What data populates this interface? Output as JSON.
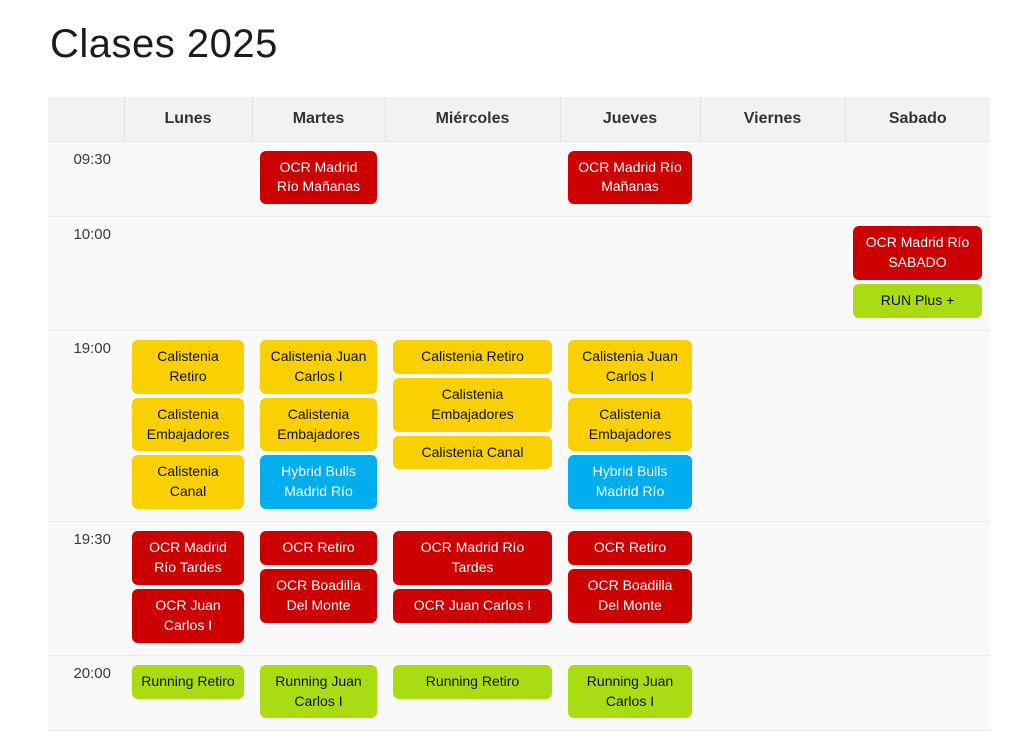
{
  "page": {
    "title": "Clases 2025"
  },
  "colors": {
    "red": "#cc0000",
    "yellow": "#fad000",
    "blue": "#00aeef",
    "green": "#aadc14"
  },
  "timetable": {
    "days": [
      "Lunes",
      "Martes",
      "Miércoles",
      "Jueves",
      "Viernes",
      "Sabado"
    ],
    "rows": [
      {
        "time": "09:30",
        "cells": [
          [],
          [
            {
              "label": "OCR Madrid Río Mañanas",
              "type": "red"
            }
          ],
          [],
          [
            {
              "label": "OCR Madrid Río Mañanas",
              "type": "red"
            }
          ],
          [],
          []
        ]
      },
      {
        "time": "10:00",
        "cells": [
          [],
          [],
          [],
          [],
          [],
          [
            {
              "label": "OCR Madrid Río SABADO",
              "type": "red"
            },
            {
              "label": "RUN Plus +",
              "type": "green"
            }
          ]
        ]
      },
      {
        "time": "19:00",
        "cells": [
          [
            {
              "label": "Calistenia Retiro",
              "type": "yellow"
            },
            {
              "label": "Calistenia Embajadores",
              "type": "yellow"
            },
            {
              "label": "Calistenia Canal",
              "type": "yellow"
            }
          ],
          [
            {
              "label": "Calistenia Juan Carlos I",
              "type": "yellow"
            },
            {
              "label": "Calistenia Embajadores",
              "type": "yellow"
            },
            {
              "label": "Hybrid Bulls Madrid Río",
              "type": "blue"
            }
          ],
          [
            {
              "label": "Calistenia Retiro",
              "type": "yellow"
            },
            {
              "label": "Calistenia Embajadores",
              "type": "yellow"
            },
            {
              "label": "Calistenia Canal",
              "type": "yellow"
            }
          ],
          [
            {
              "label": "Calistenia Juan Carlos I",
              "type": "yellow"
            },
            {
              "label": "Calistenia Embajadores",
              "type": "yellow"
            },
            {
              "label": "Hybrid Bulls Madrid Río",
              "type": "blue"
            }
          ],
          [],
          []
        ]
      },
      {
        "time": "19:30",
        "cells": [
          [
            {
              "label": "OCR Madrid Río Tardes",
              "type": "red"
            },
            {
              "label": "OCR Juan Carlos I",
              "type": "red"
            }
          ],
          [
            {
              "label": "OCR Retiro",
              "type": "red"
            },
            {
              "label": "OCR Boadilla Del Monte",
              "type": "red"
            }
          ],
          [
            {
              "label": "OCR Madrid Río Tardes",
              "type": "red"
            },
            {
              "label": "OCR Juan Carlos I",
              "type": "red"
            }
          ],
          [
            {
              "label": "OCR Retiro",
              "type": "red"
            },
            {
              "label": "OCR Boadilla Del Monte",
              "type": "red"
            }
          ],
          [],
          []
        ]
      },
      {
        "time": "20:00",
        "cells": [
          [
            {
              "label": "Running Retiro",
              "type": "green"
            }
          ],
          [
            {
              "label": "Running Juan Carlos I",
              "type": "green"
            }
          ],
          [
            {
              "label": "Running Retiro",
              "type": "green"
            }
          ],
          [
            {
              "label": "Running Juan Carlos I",
              "type": "green"
            }
          ],
          [],
          []
        ]
      }
    ]
  }
}
